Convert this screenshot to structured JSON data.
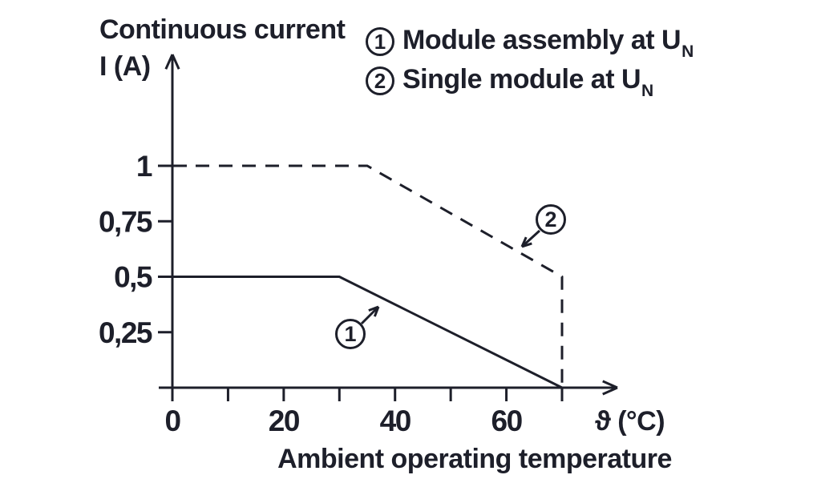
{
  "colors": {
    "ink": "#1d1f2a",
    "background": "#ffffff"
  },
  "y_axis_title": {
    "line1": "Continuous current",
    "line2": "I (A)"
  },
  "x_axis": {
    "symbol_label": "ϑ (°C)",
    "caption": "Ambient operating temperature"
  },
  "legend": {
    "items": [
      {
        "number": "1",
        "label": "Module assembly at U",
        "subscript": "N"
      },
      {
        "number": "2",
        "label": "Single module at U",
        "subscript": "N"
      }
    ]
  },
  "callouts": [
    {
      "number": "1",
      "refers_to": "module-assembly-curve"
    },
    {
      "number": "2",
      "refers_to": "single-module-curve"
    }
  ],
  "chart_data": {
    "type": "line",
    "title": "",
    "xlabel": "Ambient operating temperature",
    "x_unit_label": "ϑ (°C)",
    "ylabel": "Continuous current I (A)",
    "xlim": [
      0,
      70
    ],
    "ylim": [
      0,
      1
    ],
    "grid": false,
    "legend_position": "top-right",
    "x_ticks": [
      0,
      10,
      20,
      30,
      40,
      50,
      60,
      70
    ],
    "x_tick_labels": [
      {
        "value": 0,
        "label": "0"
      },
      {
        "value": 20,
        "label": "20"
      },
      {
        "value": 40,
        "label": "40"
      },
      {
        "value": 60,
        "label": "60"
      }
    ],
    "y_ticks": [
      {
        "value": 0.25,
        "label": "0,25"
      },
      {
        "value": 0.5,
        "label": "0,5"
      },
      {
        "value": 0.75,
        "label": "0,75"
      },
      {
        "value": 1,
        "label": "1"
      }
    ],
    "series": [
      {
        "id": "1",
        "name": "Module assembly at UN",
        "line_style": "solid",
        "points": [
          [
            0,
            0.5
          ],
          [
            30,
            0.5
          ],
          [
            70,
            0
          ]
        ]
      },
      {
        "id": "2",
        "name": "Single module at UN",
        "line_style": "dashed",
        "points": [
          [
            0,
            1
          ],
          [
            35,
            1
          ],
          [
            70,
            0.5
          ],
          [
            70,
            0
          ]
        ]
      }
    ]
  }
}
